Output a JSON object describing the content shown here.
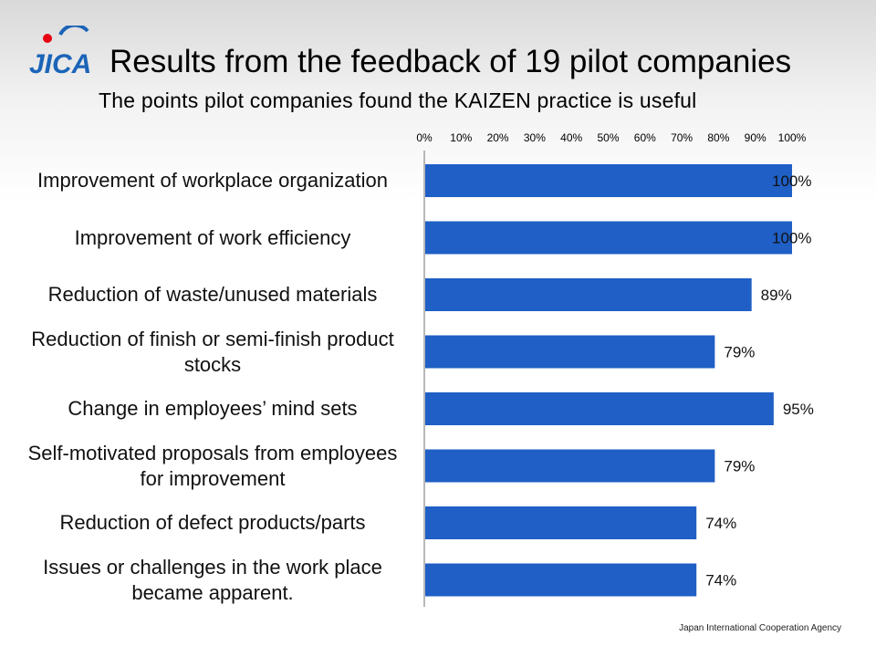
{
  "header": {
    "logo_text": "JICA",
    "title": "Results from the feedback of 19 pilot companies",
    "subtitle": "The points pilot companies found the KAIZEN practice is useful"
  },
  "footer": {
    "agency": "Japan International Cooperation Agency"
  },
  "colors": {
    "bar": "#1f5fc6",
    "axis": "#a0a0a0",
    "logo_blue": "#1b64b8",
    "logo_red": "#e60012"
  },
  "chart_data": {
    "type": "bar",
    "orientation": "horizontal",
    "title": "",
    "xlabel": "",
    "ylabel": "",
    "xlim": [
      0,
      100
    ],
    "ticks": [
      "0%",
      "10%",
      "20%",
      "30%",
      "40%",
      "50%",
      "60%",
      "70%",
      "80%",
      "90%",
      "100%"
    ],
    "categories": [
      "Improvement of workplace organization",
      "Improvement of work efficiency",
      "Reduction of waste/unused materials",
      "Reduction of finish or semi-finish product stocks",
      "Change in employees’ mind sets",
      "Self-motivated proposals from employees for improvement",
      "Reduction of defect products/parts",
      "Issues or challenges in the work place became apparent."
    ],
    "values": [
      100,
      100,
      89,
      79,
      95,
      79,
      74,
      74
    ],
    "data_labels": [
      "100%",
      "100%",
      "89%",
      "79%",
      "95%",
      "79%",
      "74%",
      "74%"
    ],
    "grid": false,
    "legend": "none"
  }
}
